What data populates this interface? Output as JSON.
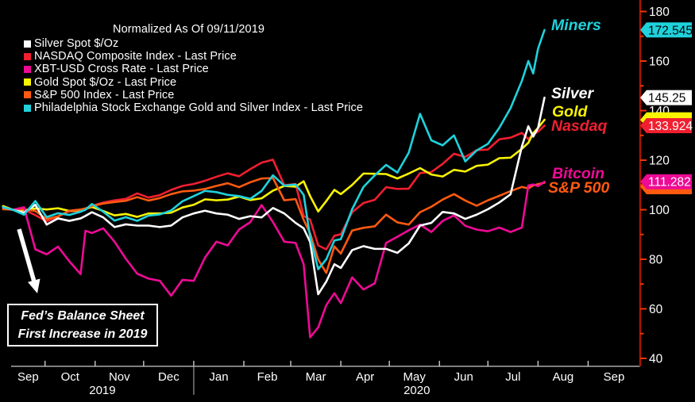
{
  "chart_title": "Normalized As Of 09/11/2019",
  "annotation": {
    "line1": "Fed’s Balance Sheet",
    "line2": "First Increase in 2019"
  },
  "legend": {
    "items": [
      {
        "label": "Silver Spot $/Oz",
        "color": "#ffffff"
      },
      {
        "label": "NASDAQ Composite Index - Last Price",
        "color": "#f01f30"
      },
      {
        "label": "XBT-USD Cross Rate - Last Price",
        "color": "#ed0a95"
      },
      {
        "label": "Gold Spot $/Oz - Last Price",
        "color": "#f9f400"
      },
      {
        "label": "S&P 500 Index - Last Price",
        "color": "#ff5a0f"
      },
      {
        "label": "Philadelphia Stock Exchange Gold and Silver Index - Last Price",
        "color": "#1fd2dc"
      }
    ]
  },
  "chart_data": {
    "type": "line",
    "title": "Normalized As Of 09/11/2019",
    "x_unit": "days since 2019-09-11",
    "grid": "off",
    "legend_position": "top-left",
    "x_days": [
      -6,
      0,
      7,
      14,
      21,
      28,
      35,
      42,
      45,
      49,
      56,
      63,
      70,
      77,
      84,
      91,
      98,
      105,
      112,
      119,
      126,
      133,
      140,
      147,
      154,
      161,
      168,
      175,
      180,
      184,
      189,
      194,
      199,
      203,
      210,
      217,
      224,
      231,
      238,
      245,
      252,
      259,
      266,
      273,
      280,
      287,
      294,
      301,
      308,
      315,
      319,
      322,
      325,
      329
    ],
    "series": [
      {
        "key": "silver",
        "name": "Silver Spot $/Oz",
        "chart_label": "Silver",
        "color": "#ffffff",
        "tag_label": "145.25",
        "tag_text_color": "#000000",
        "values": [
          101,
          100,
          98.8,
          102,
          94,
          96.5,
          95.5,
          96.5,
          97.5,
          99,
          96.9,
          93,
          94.1,
          93.6,
          93.6,
          93,
          93.6,
          96.9,
          98.5,
          99.6,
          98.5,
          98,
          96.3,
          97.4,
          96.9,
          100.7,
          98.5,
          94.7,
          92.5,
          87,
          65.9,
          71,
          78,
          76.5,
          83.7,
          85.3,
          84.2,
          84.2,
          82.6,
          86.4,
          93.6,
          94.7,
          99.1,
          98.5,
          96.3,
          98,
          100.2,
          102.9,
          106.2,
          125.5,
          133.7,
          129.5,
          133,
          145.25
        ]
      },
      {
        "key": "nasdaq",
        "name": "NASDAQ Composite Index",
        "chart_label": "Nasdaq",
        "color": "#f01f30",
        "tag_label": "133.924",
        "tag_text_color": "#ffffff",
        "values": [
          100.4,
          100,
          100.1,
          97.8,
          95.3,
          97.3,
          99.4,
          99.4,
          100,
          101.5,
          102.9,
          103.8,
          104.4,
          106.6,
          104.9,
          105.9,
          108,
          109.6,
          110.4,
          111.7,
          113.3,
          114.7,
          113.5,
          116.4,
          119,
          120.2,
          109.9,
          110.4,
          97.5,
          96,
          85.6,
          84,
          89.5,
          90.1,
          99,
          102.7,
          104,
          109.1,
          108.4,
          108.5,
          114.8,
          115.2,
          118.5,
          122.6,
          121.3,
          124,
          124.3,
          128.4,
          129.1,
          131,
          128.5,
          130.5,
          131.5,
          133.924
        ]
      },
      {
        "key": "bitcoin",
        "name": "XBT-USD Cross Rate",
        "chart_label": "Bitcoin",
        "color": "#ed0a95",
        "tag_label": "111.282",
        "tag_text_color": "#ffffff",
        "values": [
          101,
          100,
          101,
          84,
          82,
          85.1,
          79.2,
          74,
          91.5,
          90.6,
          92.5,
          87.1,
          80.2,
          74.2,
          72.2,
          71.3,
          65.3,
          71.7,
          71.3,
          80.7,
          87.1,
          85.6,
          92,
          95,
          101.9,
          95,
          87.1,
          86.6,
          78,
          48.5,
          52.5,
          61.5,
          66.3,
          62.3,
          72.7,
          67.8,
          70.3,
          86.6,
          89.1,
          91.7,
          94,
          91,
          95.5,
          97.7,
          93.5,
          92,
          91.3,
          92.8,
          91,
          92.8,
          109.8,
          110.2,
          109.5,
          111.282
        ]
      },
      {
        "key": "gold",
        "name": "Gold Spot $/Oz",
        "chart_label": "Gold",
        "color": "#f9f400",
        "tag_label": "",
        "tag_text_color": "#000000",
        "values": [
          101.5,
          100,
          99.8,
          100.5,
          100.1,
          100.6,
          99.5,
          99.9,
          100.5,
          101.1,
          99.5,
          97.7,
          98.3,
          97.1,
          98.5,
          98.5,
          98.8,
          100.9,
          102,
          104.2,
          103.8,
          104.1,
          105.3,
          103.9,
          104.6,
          107.7,
          109.6,
          109.3,
          111.5,
          105.5,
          99.3,
          103.5,
          108,
          106.3,
          110,
          114.6,
          114.5,
          114.4,
          112.6,
          114.6,
          116.8,
          114.2,
          113.4,
          116.1,
          115.4,
          117.7,
          118.2,
          120.8,
          121,
          124.6,
          127,
          130.9,
          133,
          136.3
        ]
      },
      {
        "key": "sp500",
        "name": "S&P 500 Index",
        "chart_label": "S&P 500",
        "color": "#ff5a0f",
        "tag_label": "",
        "tag_text_color": "#ffffff",
        "values": [
          100.2,
          100,
          100.2,
          99.5,
          96.2,
          97.3,
          99.6,
          100.1,
          100.5,
          101.5,
          102.5,
          103.1,
          103.6,
          105.1,
          103.7,
          104.7,
          106.3,
          107.4,
          107.7,
          108.4,
          109.6,
          110.7,
          109.1,
          111.1,
          112.6,
          112.8,
          103.8,
          104.3,
          95.9,
          90.5,
          79.9,
          74.5,
          85.2,
          82.3,
          91.6,
          92.7,
          93.3,
          98,
          94.9,
          94,
          99,
          101.2,
          104.1,
          106.3,
          103.7,
          101.6,
          103.8,
          105.6,
          107.5,
          109.2,
          108.6,
          109.8,
          110.3,
          110.9
        ]
      },
      {
        "key": "miners",
        "name": "Philadelphia Stock Exchange Gold and Silver Index",
        "chart_label": "Miners",
        "color": "#1fd2dc",
        "tag_label": "172.545",
        "tag_text_color": "#000000",
        "values": [
          101,
          100,
          98,
          103.5,
          97,
          98.6,
          97.9,
          99.2,
          100,
          102.3,
          99.2,
          95.6,
          97,
          95.5,
          97.6,
          98.1,
          99.7,
          103.4,
          105.5,
          107.6,
          107.1,
          106,
          105.5,
          104.4,
          107.6,
          113.9,
          109.7,
          110.2,
          106,
          89,
          76,
          80,
          87.6,
          88.1,
          100.2,
          109.2,
          113.9,
          118.1,
          115,
          123,
          138.7,
          128,
          126,
          130,
          119.5,
          123.9,
          126.6,
          133,
          141,
          152,
          160,
          155,
          165,
          172.545
        ]
      }
    ],
    "y_axis": {
      "side": "right",
      "min": 40,
      "max": 180,
      "major_ticks": [
        40,
        60,
        80,
        100,
        120,
        140,
        160,
        180
      ],
      "minor_ticks": [
        50,
        70,
        90,
        110,
        130,
        150,
        170
      ],
      "axis_color": "#a81500",
      "tick_color": "#eb3800",
      "label_color": "#ffffff"
    },
    "x_axis": {
      "month_boundaries_days": [
        -1,
        20,
        51,
        81,
        112,
        143,
        172,
        203,
        233,
        264,
        294,
        325,
        356,
        388
      ],
      "month_labels": [
        "Sep",
        "Oct",
        "Nov",
        "Dec",
        "Jan",
        "Feb",
        "Mar",
        "Apr",
        "May",
        "Jun",
        "Jul",
        "Aug",
        "Sep"
      ],
      "years": [
        {
          "label": "2019",
          "span_days": [
            -1,
            112
          ]
        },
        {
          "label": "2020",
          "span_days": [
            112,
            388
          ]
        }
      ],
      "axis_color": "#a9a9a9",
      "label_color": "#ffffff"
    }
  }
}
